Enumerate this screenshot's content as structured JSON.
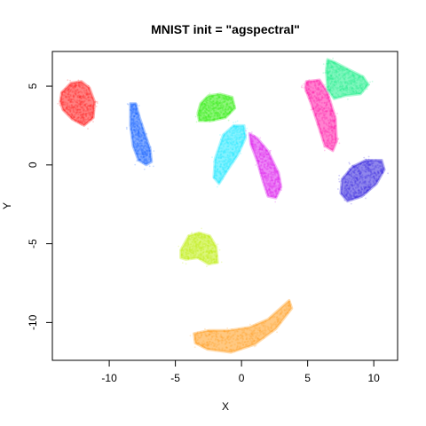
{
  "chart_data": {
    "type": "scatter",
    "title": "MNIST init = \"agspectral\"",
    "xlabel": "X",
    "ylabel": "Y",
    "xlim": [
      -14.3,
      11.8
    ],
    "ylim": [
      -12.4,
      7.2
    ],
    "xticks": [
      -10,
      -5,
      0,
      5,
      10
    ],
    "yticks": [
      -10,
      -5,
      0,
      5
    ],
    "grid": false,
    "legend": "none",
    "series": [
      {
        "color": "#ff1a1a",
        "polygon": [
          [
            -13.6,
            4.6
          ],
          [
            -12.9,
            5.2
          ],
          [
            -12.1,
            5.3
          ],
          [
            -11.5,
            4.9
          ],
          [
            -11.1,
            4.0
          ],
          [
            -11.2,
            3.0
          ],
          [
            -11.9,
            2.5
          ],
          [
            -12.8,
            2.9
          ],
          [
            -13.5,
            3.5
          ],
          [
            -13.7,
            4.0
          ]
        ]
      },
      {
        "color": "#1a66ff",
        "polygon": [
          [
            -8.4,
            3.9
          ],
          [
            -8.0,
            3.9
          ],
          [
            -7.7,
            3.0
          ],
          [
            -7.3,
            2.0
          ],
          [
            -6.9,
            1.0
          ],
          [
            -6.8,
            0.2
          ],
          [
            -7.2,
            0.0
          ],
          [
            -7.8,
            0.3
          ],
          [
            -8.2,
            1.2
          ],
          [
            -8.4,
            2.5
          ]
        ]
      },
      {
        "color": "#33ee11",
        "polygon": [
          [
            -3.1,
            3.9
          ],
          [
            -2.5,
            4.4
          ],
          [
            -1.6,
            4.5
          ],
          [
            -0.7,
            4.3
          ],
          [
            -0.5,
            3.6
          ],
          [
            -1.2,
            3.0
          ],
          [
            -2.3,
            2.8
          ],
          [
            -3.2,
            2.8
          ],
          [
            -3.3,
            3.3
          ]
        ]
      },
      {
        "color": "#22e8ff",
        "polygon": [
          [
            -1.4,
            1.9
          ],
          [
            -0.6,
            2.5
          ],
          [
            0.2,
            2.5
          ],
          [
            0.3,
            1.7
          ],
          [
            -0.3,
            0.6
          ],
          [
            -1.1,
            -0.4
          ],
          [
            -1.7,
            -1.2
          ],
          [
            -2.1,
            -0.8
          ],
          [
            -2.0,
            0.4
          ]
        ]
      },
      {
        "color": "#dd22ee",
        "polygon": [
          [
            0.6,
            2.0
          ],
          [
            1.2,
            1.7
          ],
          [
            2.0,
            0.9
          ],
          [
            2.8,
            -0.5
          ],
          [
            3.0,
            -1.4
          ],
          [
            2.6,
            -2.1
          ],
          [
            2.0,
            -2.0
          ],
          [
            1.6,
            -1.0
          ],
          [
            1.2,
            0.2
          ],
          [
            0.7,
            1.3
          ]
        ]
      },
      {
        "color": "#ff1aa8",
        "polygon": [
          [
            4.9,
            5.3
          ],
          [
            5.9,
            5.4
          ],
          [
            6.5,
            4.6
          ],
          [
            7.1,
            3.0
          ],
          [
            7.2,
            1.5
          ],
          [
            6.9,
            0.9
          ],
          [
            6.3,
            1.2
          ],
          [
            5.8,
            2.5
          ],
          [
            5.3,
            3.8
          ],
          [
            4.8,
            4.9
          ]
        ]
      },
      {
        "color": "#1aee88",
        "polygon": [
          [
            6.5,
            6.7
          ],
          [
            7.1,
            6.5
          ],
          [
            8.0,
            6.1
          ],
          [
            9.2,
            5.6
          ],
          [
            9.6,
            5.1
          ],
          [
            9.0,
            4.5
          ],
          [
            7.9,
            4.4
          ],
          [
            7.0,
            4.2
          ],
          [
            6.5,
            4.8
          ],
          [
            6.4,
            6.0
          ]
        ]
      },
      {
        "color": "#3322dd",
        "polygon": [
          [
            7.6,
            -0.9
          ],
          [
            8.4,
            -0.1
          ],
          [
            9.4,
            0.3
          ],
          [
            10.6,
            0.3
          ],
          [
            10.8,
            -0.3
          ],
          [
            10.2,
            -1.2
          ],
          [
            9.1,
            -2.0
          ],
          [
            8.0,
            -2.3
          ],
          [
            7.5,
            -1.8
          ]
        ]
      },
      {
        "color": "#c0ee11",
        "polygon": [
          [
            -4.6,
            -5.4
          ],
          [
            -4.0,
            -4.5
          ],
          [
            -3.2,
            -4.3
          ],
          [
            -2.4,
            -4.5
          ],
          [
            -1.9,
            -5.2
          ],
          [
            -1.8,
            -6.2
          ],
          [
            -2.5,
            -6.3
          ],
          [
            -3.3,
            -5.9
          ],
          [
            -4.2,
            -6.0
          ],
          [
            -4.6,
            -5.9
          ]
        ]
      },
      {
        "color": "#ff9a1a",
        "polygon": [
          [
            -3.6,
            -10.7
          ],
          [
            -2.5,
            -10.5
          ],
          [
            -1.0,
            -10.5
          ],
          [
            0.6,
            -10.3
          ],
          [
            2.0,
            -9.8
          ],
          [
            3.6,
            -8.6
          ],
          [
            3.8,
            -9.1
          ],
          [
            2.6,
            -10.4
          ],
          [
            1.0,
            -11.4
          ],
          [
            -0.8,
            -11.9
          ],
          [
            -2.6,
            -11.7
          ],
          [
            -3.5,
            -11.3
          ]
        ]
      }
    ]
  }
}
